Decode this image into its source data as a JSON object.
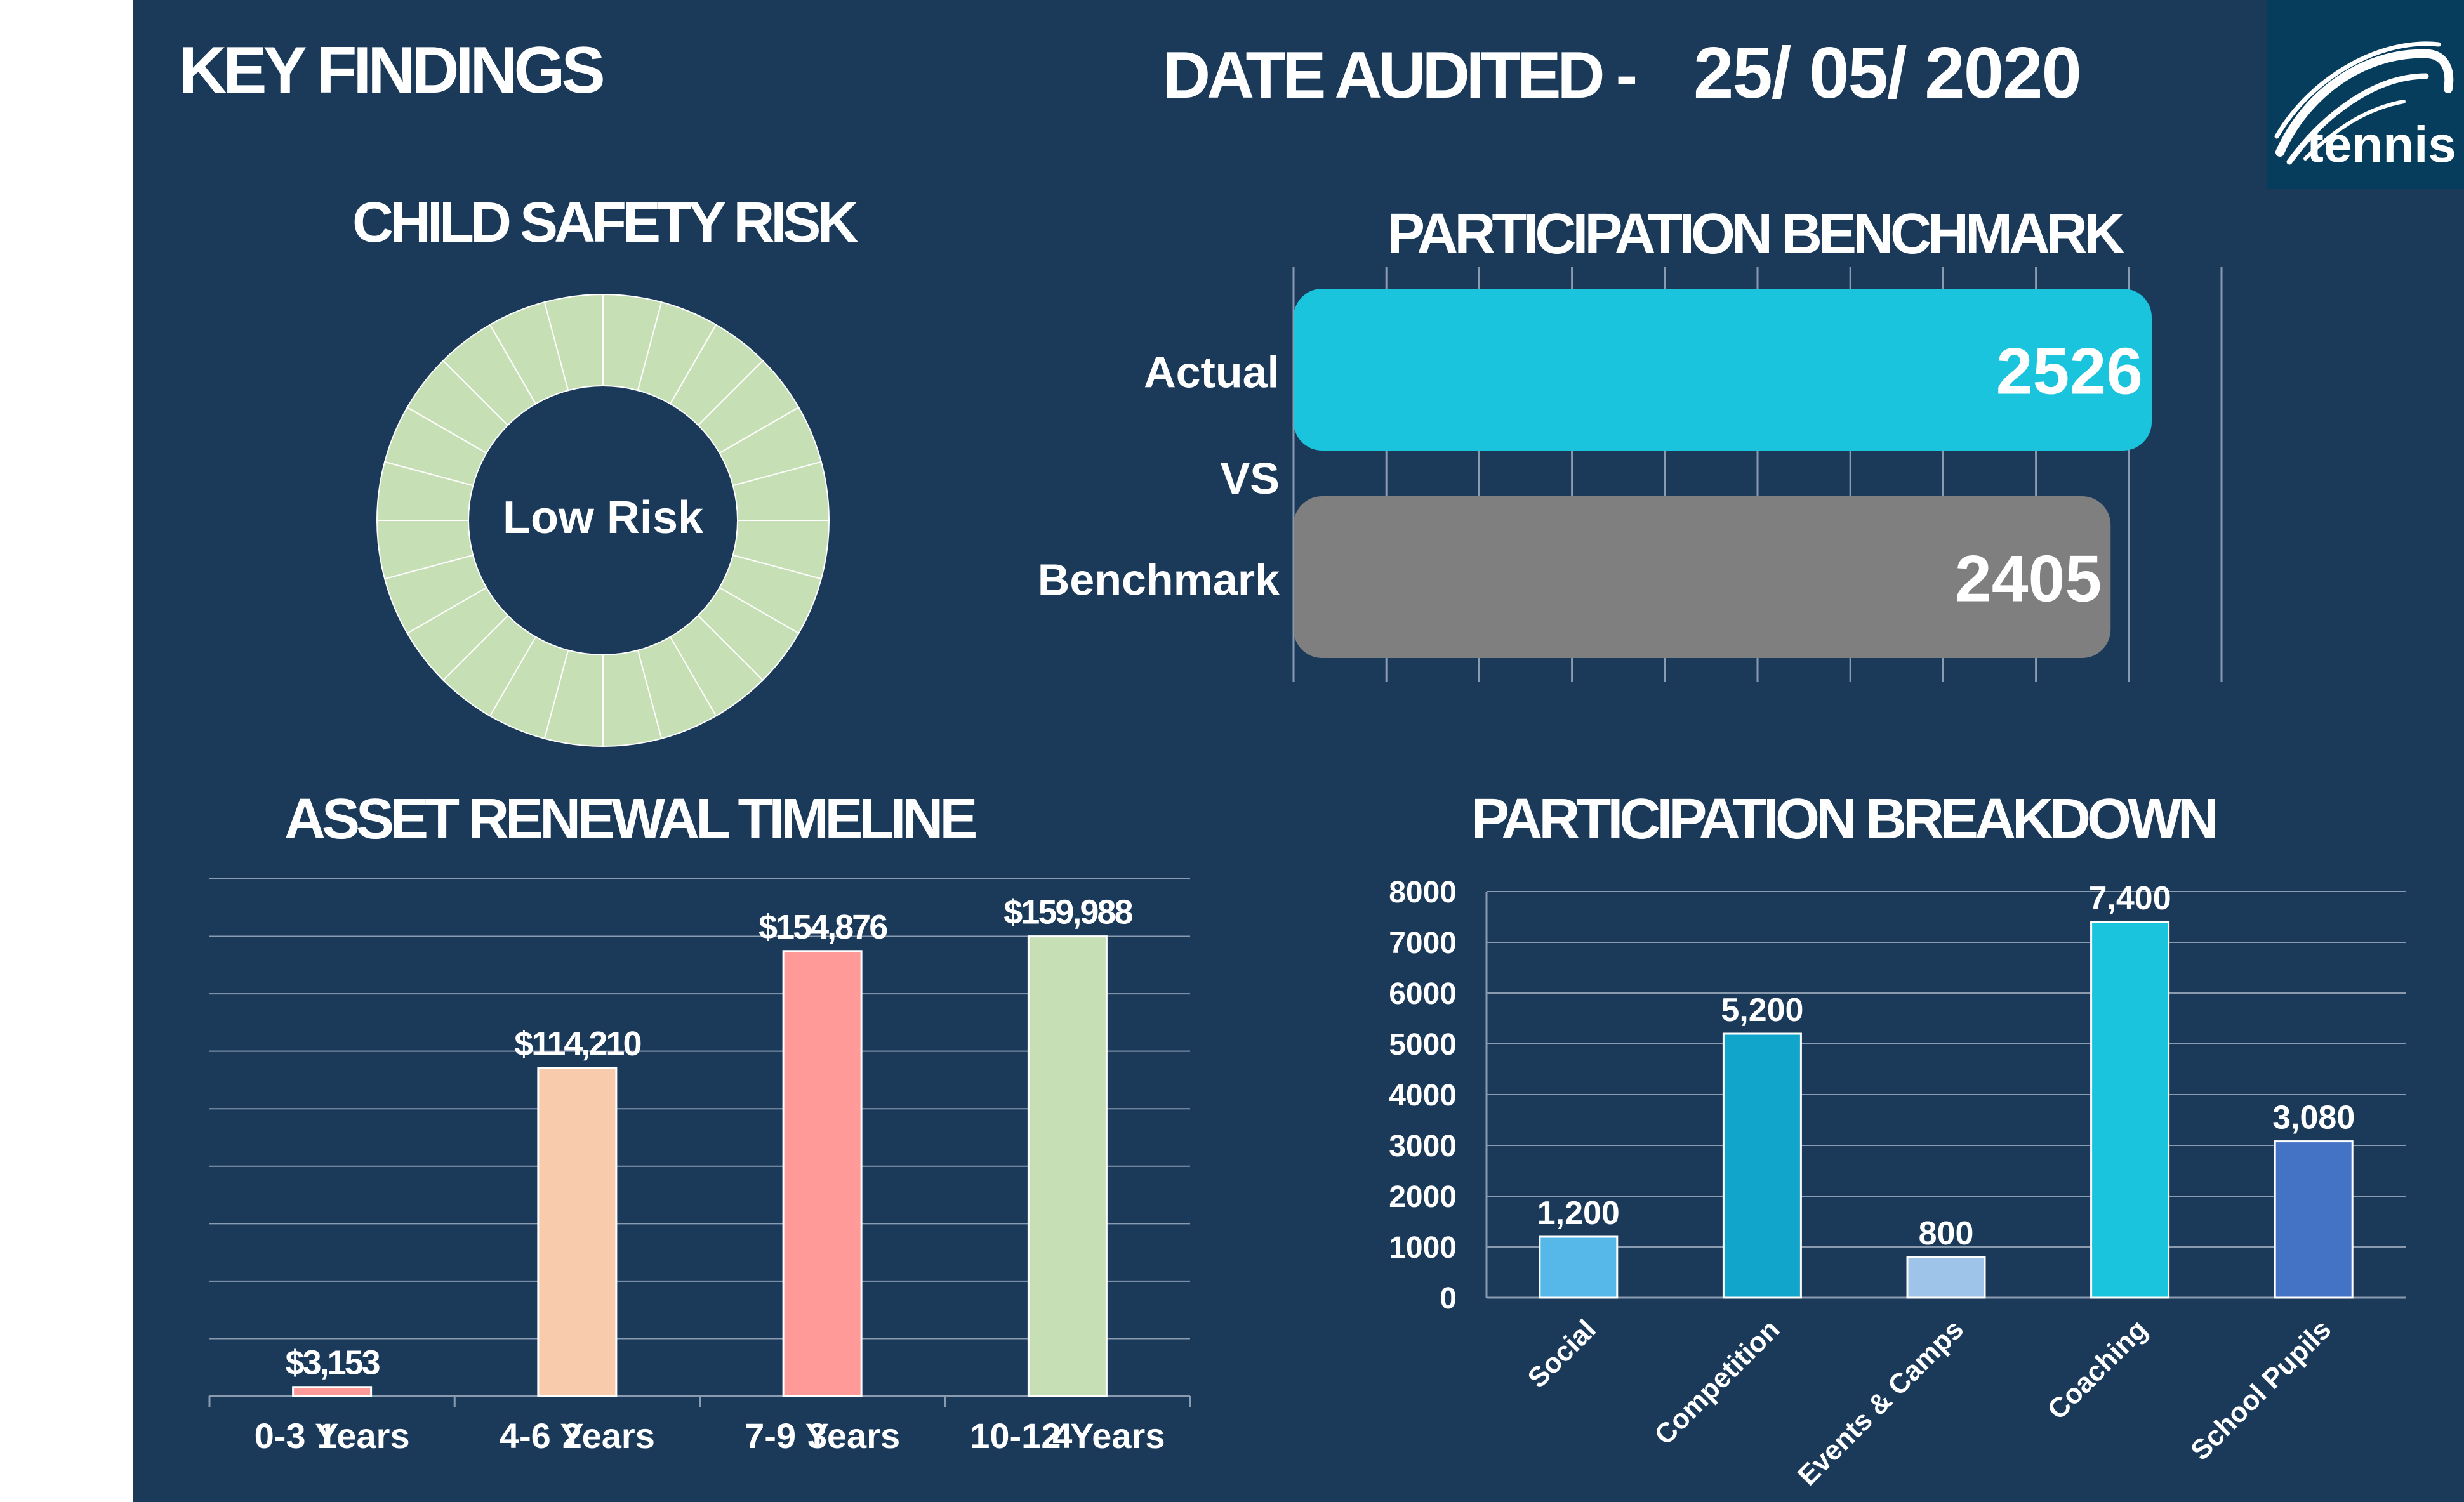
{
  "header": {
    "title": "KEY FINDINGS",
    "date_label": "DATE AUDITED -",
    "date_value": "25/ 05/ 2020",
    "logo_text": "tennis"
  },
  "colors": {
    "background": "#1b3a5a",
    "page_margin": "#ffffff",
    "logo_bg": "#063c5c",
    "gridline": "#8a9bb0"
  },
  "chart_data": [
    {
      "type": "pie",
      "title": "CHILD SAFETY RISK",
      "center_label": "Low Risk",
      "segments": 24,
      "color": "#c6dfb4"
    },
    {
      "type": "bar",
      "orientation": "horizontal",
      "title": "PARTICIPATION BENCHMARK",
      "categories": [
        "Actual",
        "Benchmark"
      ],
      "separator_label": "VS",
      "values": [
        2526,
        2405
      ],
      "value_labels": [
        "2526",
        "2405"
      ],
      "colors": [
        "#1bc4dd",
        "#7f7f7f"
      ]
    },
    {
      "type": "bar",
      "title": "ASSET RENEWAL TIMELINE",
      "categories": [
        "0-3 Years",
        "4-6 Years",
        "7-9 Years",
        "10-12 Years"
      ],
      "overlap_labels": [
        "1",
        "2",
        "3",
        "4"
      ],
      "values": [
        3153,
        114210,
        154876,
        159988
      ],
      "value_labels": [
        "$3,153",
        "$114,210",
        "$154,876",
        "$159,988"
      ],
      "colors": [
        "#ff9a99",
        "#f8cbad",
        "#ff9a99",
        "#c6dfb4"
      ],
      "ylim": [
        0,
        180000
      ],
      "grid": true
    },
    {
      "type": "bar",
      "title": "PARTICIPATION BREAKDOWN",
      "categories": [
        "Social",
        "Competition",
        "Events & Camps",
        "Coaching",
        "School Pupils"
      ],
      "values": [
        1200,
        5200,
        800,
        7400,
        3080
      ],
      "value_labels": [
        "1,200",
        "5,200",
        "800",
        "7,400",
        "3,080"
      ],
      "colors": [
        "#56b8e8",
        "#12a5cc",
        "#9ec4ea",
        "#1bc4dd",
        "#4472c4"
      ],
      "y_ticks": [
        "0",
        "1000",
        "2000",
        "3000",
        "4000",
        "5000",
        "6000",
        "7000",
        "8000"
      ],
      "ylim": [
        0,
        8000
      ],
      "grid": true
    }
  ]
}
